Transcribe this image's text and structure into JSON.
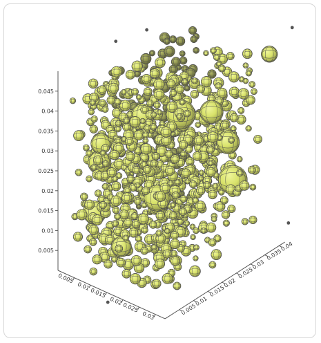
{
  "chart_data": {
    "type": "scatter",
    "title": "",
    "xlabel": "",
    "ylabel": "",
    "zlabel": "",
    "grid": false,
    "axes": {
      "x": {
        "ticks": [
          "0.005",
          "0.01",
          "0.015",
          "0.02",
          "0.025",
          "0.03"
        ],
        "range": [
          0,
          0.033
        ]
      },
      "y": {
        "ticks": [
          "0.005",
          "0.01",
          "0.015",
          "0.02",
          "0.025",
          "0.03",
          "0.035",
          "0.04"
        ],
        "range": [
          0,
          0.042
        ]
      },
      "z": {
        "ticks": [
          "0.005",
          "0.01",
          "0.015",
          "0.02",
          "0.025",
          "0.03",
          "0.035",
          "0.04",
          "0.045"
        ],
        "range": [
          0,
          0.05
        ]
      }
    },
    "colors": {
      "sphere_fill": "#d8e26a",
      "sphere_shade": "#74783e",
      "mesh": "#4e4e4e",
      "axis": "#555555",
      "tick_text": "#333333"
    },
    "large_spheres": [
      {
        "x": 0.03,
        "y": 0.04,
        "z": 0.047,
        "r": 0.0028
      },
      {
        "x": 0.028,
        "y": 0.022,
        "z": 0.04,
        "r": 0.004
      },
      {
        "x": 0.022,
        "y": 0.018,
        "z": 0.039,
        "r": 0.005
      },
      {
        "x": 0.012,
        "y": 0.016,
        "z": 0.036,
        "r": 0.004
      },
      {
        "x": 0.008,
        "y": 0.006,
        "z": 0.032,
        "r": 0.0035
      },
      {
        "x": 0.004,
        "y": 0.01,
        "z": 0.024,
        "r": 0.004
      },
      {
        "x": 0.006,
        "y": 0.006,
        "z": 0.014,
        "r": 0.004
      },
      {
        "x": 0.02,
        "y": 0.012,
        "z": 0.02,
        "r": 0.0045
      },
      {
        "x": 0.024,
        "y": 0.034,
        "z": 0.016,
        "r": 0.005
      },
      {
        "x": 0.026,
        "y": 0.03,
        "z": 0.028,
        "r": 0.004
      },
      {
        "x": 0.01,
        "y": 0.02,
        "z": 0.022,
        "r": 0.0035
      },
      {
        "x": 0.016,
        "y": 0.004,
        "z": 0.01,
        "r": 0.0035
      }
    ],
    "small_sphere_count": 820,
    "small_sphere_radius_range": [
      0.0009,
      0.0019
    ]
  }
}
